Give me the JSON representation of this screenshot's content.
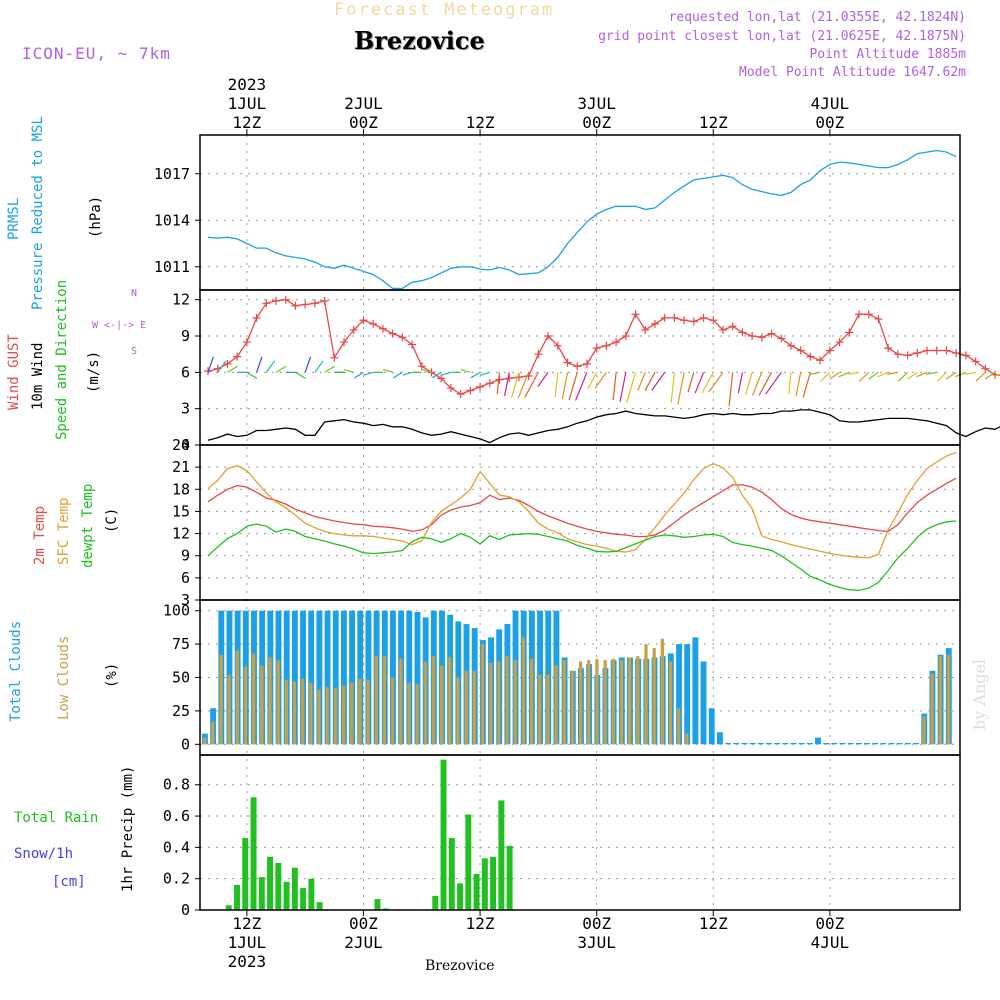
{
  "header": {
    "forecast_title": "Forecast Meteogram",
    "model": "ICON-EU, ~ 7km",
    "station": "Brezovice",
    "requested": "requested lon,lat (21.0355E, 42.1824N)",
    "grid": "grid point closest lon,lat (21.0625E, 42.1875N)",
    "altitude": "Point Altitude 1885m",
    "model_altitude": "Model Point Altitude 1647.62m"
  },
  "footer": {
    "station": "Brezovice",
    "watermark": "by Angel"
  },
  "time_axis": {
    "top_labels": [
      {
        "t": 4,
        "lines": [
          "2023",
          "1JUL",
          "12Z"
        ]
      },
      {
        "t": 16,
        "lines": [
          "2JUL",
          "00Z"
        ]
      },
      {
        "t": 28,
        "lines": [
          "12Z"
        ]
      },
      {
        "t": 40,
        "lines": [
          "3JUL",
          "00Z"
        ]
      },
      {
        "t": 52,
        "lines": [
          "12Z"
        ]
      },
      {
        "t": 64,
        "lines": [
          "4JUL",
          "00Z"
        ]
      }
    ],
    "bottom_labels": [
      {
        "t": 4,
        "lines": [
          "12Z",
          "1JUL",
          "2023"
        ]
      },
      {
        "t": 16,
        "lines": [
          "00Z",
          "2JUL"
        ]
      },
      {
        "t": 28,
        "lines": [
          "12Z"
        ]
      },
      {
        "t": 40,
        "lines": [
          "00Z",
          "3JUL"
        ]
      },
      {
        "t": 52,
        "lines": [
          "12Z"
        ]
      },
      {
        "t": 64,
        "lines": [
          "00Z",
          "4JUL"
        ]
      }
    ]
  },
  "panel_labels": {
    "pressure": {
      "lines": [
        "PRMSL",
        "Pressure Reduced to MSL"
      ],
      "unit": "(hPa)"
    },
    "wind": {
      "gust": "Wind GUST",
      "wind": "10m Wind",
      "dir": "Speed and Direction",
      "unit": "(m/s)"
    },
    "compass": {
      "n": "N",
      "s": "S",
      "we": "W <-|-> E"
    },
    "temp": {
      "t2m": "2m Temp",
      "sfc": "SFC Temp",
      "dew": "dewpt Temp",
      "unit": "(C)"
    },
    "clouds": {
      "total": "Total Clouds",
      "low": "Low Clouds",
      "unit": "(%)"
    },
    "precip": {
      "rain": "Total  Rain",
      "snow": "Snow/1h",
      "snow_unit": "[cm]",
      "unit": "1hr Precip (mm)"
    }
  },
  "colors": {
    "pressure": "#1ca0e8",
    "gust": "#e84848",
    "wind": "#000000",
    "t2m": "#e84848",
    "sfc": "#e0a030",
    "dew": "#20c020",
    "total_clouds": "#1ca0e8",
    "low_clouds": "#c8a048",
    "rain": "#20c020",
    "snow": "#4040f0",
    "axis_text": "#000000",
    "grid": "#999999"
  },
  "chart_data": [
    {
      "type": "line",
      "name": "pressure",
      "x_hours_from_start": "0..75",
      "ylim": [
        1009.5,
        1019.5
      ],
      "yticks": [
        1011,
        1014,
        1017
      ],
      "series": [
        {
          "values": [
            1012.9,
            1012.85,
            1012.9,
            1012.8,
            1012.5,
            1012.2,
            1012.2,
            1011.9,
            1011.7,
            1011.6,
            1011.5,
            1011.3,
            1011.0,
            1010.9,
            1011.1,
            1010.9,
            1010.7,
            1010.5,
            1010.1,
            1009.6,
            1009.6,
            1010.0,
            1010.1,
            1010.3,
            1010.6,
            1010.9,
            1011.0,
            1011.0,
            1010.85,
            1010.8,
            1010.95,
            1010.8,
            1010.5,
            1010.55,
            1010.6,
            1011.0,
            1011.6,
            1012.5,
            1013.2,
            1013.9,
            1014.4,
            1014.7,
            1014.9,
            1014.9,
            1014.9,
            1014.7,
            1014.8,
            1015.3,
            1015.8,
            1016.2,
            1016.6,
            1016.7,
            1016.8,
            1016.9,
            1016.75,
            1016.3,
            1016.0,
            1015.85,
            1015.7,
            1015.6,
            1015.8,
            1016.3,
            1016.6,
            1017.2,
            1017.6,
            1017.75,
            1017.7,
            1017.6,
            1017.5,
            1017.4,
            1017.4,
            1017.6,
            1017.9,
            1018.3,
            1018.4,
            1018.5,
            1018.4,
            1018.1
          ]
        }
      ]
    },
    {
      "type": "line",
      "name": "wind",
      "ylim": [
        0,
        12.8
      ],
      "yticks": [
        0,
        3,
        6,
        9,
        12
      ],
      "series": [
        {
          "name": "gust",
          "values": [
            6.1,
            6.3,
            6.7,
            7.3,
            8.5,
            10.5,
            11.7,
            11.9,
            12.0,
            11.5,
            11.6,
            11.7,
            11.9,
            7.2,
            8.5,
            9.5,
            10.3,
            10.0,
            9.6,
            9.2,
            8.9,
            8.3,
            6.5,
            6.0,
            5.5,
            4.7,
            4.2,
            4.5,
            4.8,
            5.1,
            5.4,
            5.5,
            5.6,
            5.7,
            7.5,
            9.0,
            8.2,
            6.8,
            6.5,
            6.7,
            8.0,
            8.2,
            8.5,
            9.0,
            10.8,
            9.5,
            10.0,
            10.5,
            10.5,
            10.3,
            10.2,
            10.5,
            10.3,
            9.5,
            9.8,
            9.3,
            9.0,
            8.9,
            9.2,
            8.8,
            8.2,
            7.8,
            7.3,
            7.0,
            7.8,
            8.5,
            9.3,
            10.8,
            10.8,
            10.4,
            8.0,
            7.5,
            7.4,
            7.6,
            7.8,
            7.8,
            7.8,
            7.6,
            7.4,
            6.9,
            6.3,
            5.8,
            5.7,
            5.6,
            5.5,
            5.6,
            5.5,
            5.4,
            5.5,
            5.6,
            5.7,
            5.9,
            6.3
          ]
        },
        {
          "name": "wind",
          "values": [
            0.4,
            0.6,
            0.9,
            0.7,
            0.8,
            1.2,
            1.2,
            1.3,
            1.4,
            1.3,
            0.8,
            0.8,
            1.9,
            2.0,
            2.1,
            1.9,
            1.8,
            1.6,
            1.7,
            1.5,
            1.5,
            1.3,
            1.0,
            0.8,
            0.9,
            1.1,
            0.9,
            0.7,
            0.5,
            0.2,
            0.6,
            0.9,
            1.0,
            0.8,
            1.0,
            1.2,
            1.3,
            1.5,
            1.8,
            2.0,
            2.3,
            2.5,
            2.6,
            2.8,
            2.6,
            2.5,
            2.4,
            2.4,
            2.3,
            2.2,
            2.3,
            2.5,
            2.6,
            2.5,
            2.6,
            2.5,
            2.5,
            2.6,
            2.6,
            2.8,
            2.8,
            2.9,
            2.9,
            2.7,
            2.5,
            2.0,
            1.9,
            1.9,
            2.0,
            2.1,
            2.2,
            2.2,
            2.2,
            2.1,
            2.0,
            1.8,
            1.6,
            1.0,
            0.7,
            1.1,
            1.4,
            1.3,
            1.7,
            1.7,
            1.8,
            1.8
          ]
        }
      ]
    },
    {
      "type": "line",
      "name": "temperature",
      "ylim": [
        3,
        24
      ],
      "yticks": [
        3,
        6,
        9,
        12,
        15,
        18,
        21,
        24
      ],
      "series": [
        {
          "name": "2m Temp",
          "values": [
            16.3,
            17.2,
            18.0,
            18.5,
            18.3,
            17.6,
            16.8,
            16.5,
            16.0,
            15.3,
            14.8,
            14.3,
            14.0,
            13.7,
            13.5,
            13.3,
            13.2,
            13.0,
            12.9,
            12.8,
            12.6,
            12.3,
            12.5,
            13.2,
            14.5,
            15.2,
            15.6,
            15.8,
            16.2,
            17.2,
            16.6,
            16.8,
            16.5,
            15.8,
            15.0,
            14.4,
            13.9,
            13.4,
            13.0,
            12.6,
            12.3,
            12.1,
            11.9,
            11.8,
            11.6,
            11.6,
            11.8,
            12.5,
            13.5,
            14.5,
            15.4,
            16.2,
            17.0,
            17.8,
            18.6,
            18.6,
            18.3,
            17.6,
            16.6,
            15.4,
            14.6,
            14.1,
            13.8,
            13.6,
            13.4,
            13.2,
            13.0,
            12.8,
            12.6,
            12.4,
            12.3,
            13.2,
            14.8,
            16.2,
            17.2,
            18.0,
            18.8,
            19.5
          ]
        },
        {
          "name": "SFC Temp",
          "values": [
            18.1,
            19.2,
            20.8,
            21.2,
            20.5,
            19.0,
            17.5,
            16.3,
            15.5,
            14.5,
            13.4,
            12.8,
            12.3,
            12.0,
            11.8,
            11.7,
            11.7,
            11.6,
            11.4,
            11.2,
            11.0,
            10.5,
            11.0,
            13.5,
            15.0,
            15.9,
            16.8,
            18.0,
            20.4,
            18.8,
            17.2,
            17.0,
            16.3,
            15.0,
            13.4,
            12.6,
            12.1,
            11.3,
            10.9,
            10.5,
            10.3,
            10.0,
            9.6,
            9.5,
            9.8,
            11.2,
            12.8,
            14.5,
            16.0,
            17.5,
            19.3,
            20.8,
            21.5,
            20.9,
            19.6,
            17.2,
            15.4,
            11.7,
            11.2,
            10.9,
            10.5,
            10.2,
            9.9,
            9.6,
            9.3,
            9.1,
            8.9,
            8.8,
            8.7,
            9.2,
            12.5,
            14.8,
            17.3,
            19.2,
            20.8,
            21.7,
            22.5,
            23.0
          ]
        },
        {
          "name": "dewpt Temp",
          "values": [
            9.0,
            10.2,
            11.3,
            12.0,
            13.0,
            13.3,
            13.0,
            12.2,
            12.6,
            12.3,
            11.6,
            11.3,
            11.0,
            10.6,
            10.3,
            9.9,
            9.4,
            9.3,
            9.4,
            9.5,
            9.7,
            10.9,
            11.5,
            11.3,
            10.8,
            11.3,
            12.0,
            11.5,
            10.6,
            11.7,
            11.2,
            11.8,
            11.9,
            12.0,
            11.9,
            11.6,
            11.3,
            11.0,
            10.4,
            10.0,
            9.6,
            9.5,
            9.6,
            10.1,
            10.6,
            11.1,
            11.6,
            11.8,
            11.7,
            11.5,
            11.6,
            11.8,
            11.9,
            11.6,
            10.8,
            10.5,
            10.3,
            10.0,
            9.7,
            9.0,
            8.1,
            7.2,
            6.2,
            5.7,
            5.1,
            4.7,
            4.4,
            4.3,
            4.6,
            5.4,
            7.0,
            8.7,
            10.0,
            11.5,
            12.6,
            13.2,
            13.6,
            13.7
          ]
        }
      ]
    },
    {
      "type": "bar",
      "name": "clouds",
      "ylim": [
        -8,
        108
      ],
      "yticks": [
        0,
        25,
        50,
        75,
        100
      ],
      "series": [
        {
          "name": "Total Clouds",
          "values": [
            8,
            27,
            100,
            100,
            100,
            100,
            100,
            100,
            100,
            100,
            100,
            100,
            100,
            100,
            100,
            100,
            100,
            100,
            100,
            100,
            100,
            100,
            100,
            100,
            100,
            100,
            99,
            95,
            100,
            100,
            97,
            92,
            90,
            87,
            78,
            80,
            86,
            90,
            100,
            100,
            100,
            100,
            100,
            100,
            65,
            55,
            57,
            60,
            52,
            57,
            63,
            65,
            65,
            64,
            64,
            65,
            66,
            68,
            75,
            75,
            80,
            62,
            27,
            9,
            1,
            1,
            1,
            1,
            1,
            1,
            1,
            1,
            1,
            1,
            1,
            5,
            1,
            1,
            1,
            1,
            1,
            1,
            1,
            1,
            1,
            1,
            1,
            1,
            23,
            55,
            67,
            72
          ]
        },
        {
          "name": "Low Clouds",
          "values": [
            5,
            17,
            67,
            52,
            70,
            58,
            68,
            59,
            65,
            63,
            48,
            47,
            49,
            46,
            41,
            43,
            42,
            44,
            46,
            49,
            48,
            66,
            66,
            50,
            64,
            46,
            45,
            62,
            66,
            59,
            65,
            50,
            55,
            55,
            75,
            61,
            62,
            66,
            63,
            80,
            64,
            52,
            52,
            59,
            63,
            55,
            62,
            63,
            64,
            63,
            64,
            63,
            65,
            66,
            75,
            72,
            79,
            62,
            27,
            8,
            0,
            0,
            0,
            0,
            0,
            0,
            0,
            0,
            0,
            0,
            0,
            0,
            0,
            0,
            0,
            0,
            0,
            0,
            0,
            0,
            0,
            0,
            0,
            0,
            0,
            0,
            0,
            0,
            21,
            53,
            66,
            67
          ]
        }
      ]
    },
    {
      "type": "bar",
      "name": "precip",
      "ylim": [
        0,
        0.99
      ],
      "yticks": [
        0,
        0.2,
        0.4,
        0.6,
        0.8
      ],
      "series": [
        {
          "name": "Total Rain",
          "values": [
            0,
            0,
            0,
            0.03,
            0.16,
            0.46,
            0.72,
            0.21,
            0.34,
            0.3,
            0.18,
            0.27,
            0.14,
            0.2,
            0.05,
            0,
            0,
            0,
            0,
            0,
            0,
            0.07,
            0.01,
            0,
            0,
            0,
            0,
            0,
            0.09,
            0.96,
            0.46,
            0.17,
            0.61,
            0.23,
            0.33,
            0.34,
            0.7,
            0.41,
            0,
            0,
            0,
            0,
            0,
            0,
            0,
            0,
            0,
            0,
            0,
            0,
            0,
            0,
            0,
            0,
            0,
            0,
            0,
            0,
            0,
            0,
            0,
            0,
            0,
            0,
            0,
            0,
            0,
            0,
            0,
            0,
            0,
            0,
            0,
            0,
            0,
            0,
            0,
            0,
            0,
            0,
            0,
            0,
            0,
            0,
            0,
            0,
            0,
            0,
            0,
            0,
            0,
            0
          ]
        },
        {
          "name": "Snow",
          "values": []
        }
      ]
    }
  ]
}
